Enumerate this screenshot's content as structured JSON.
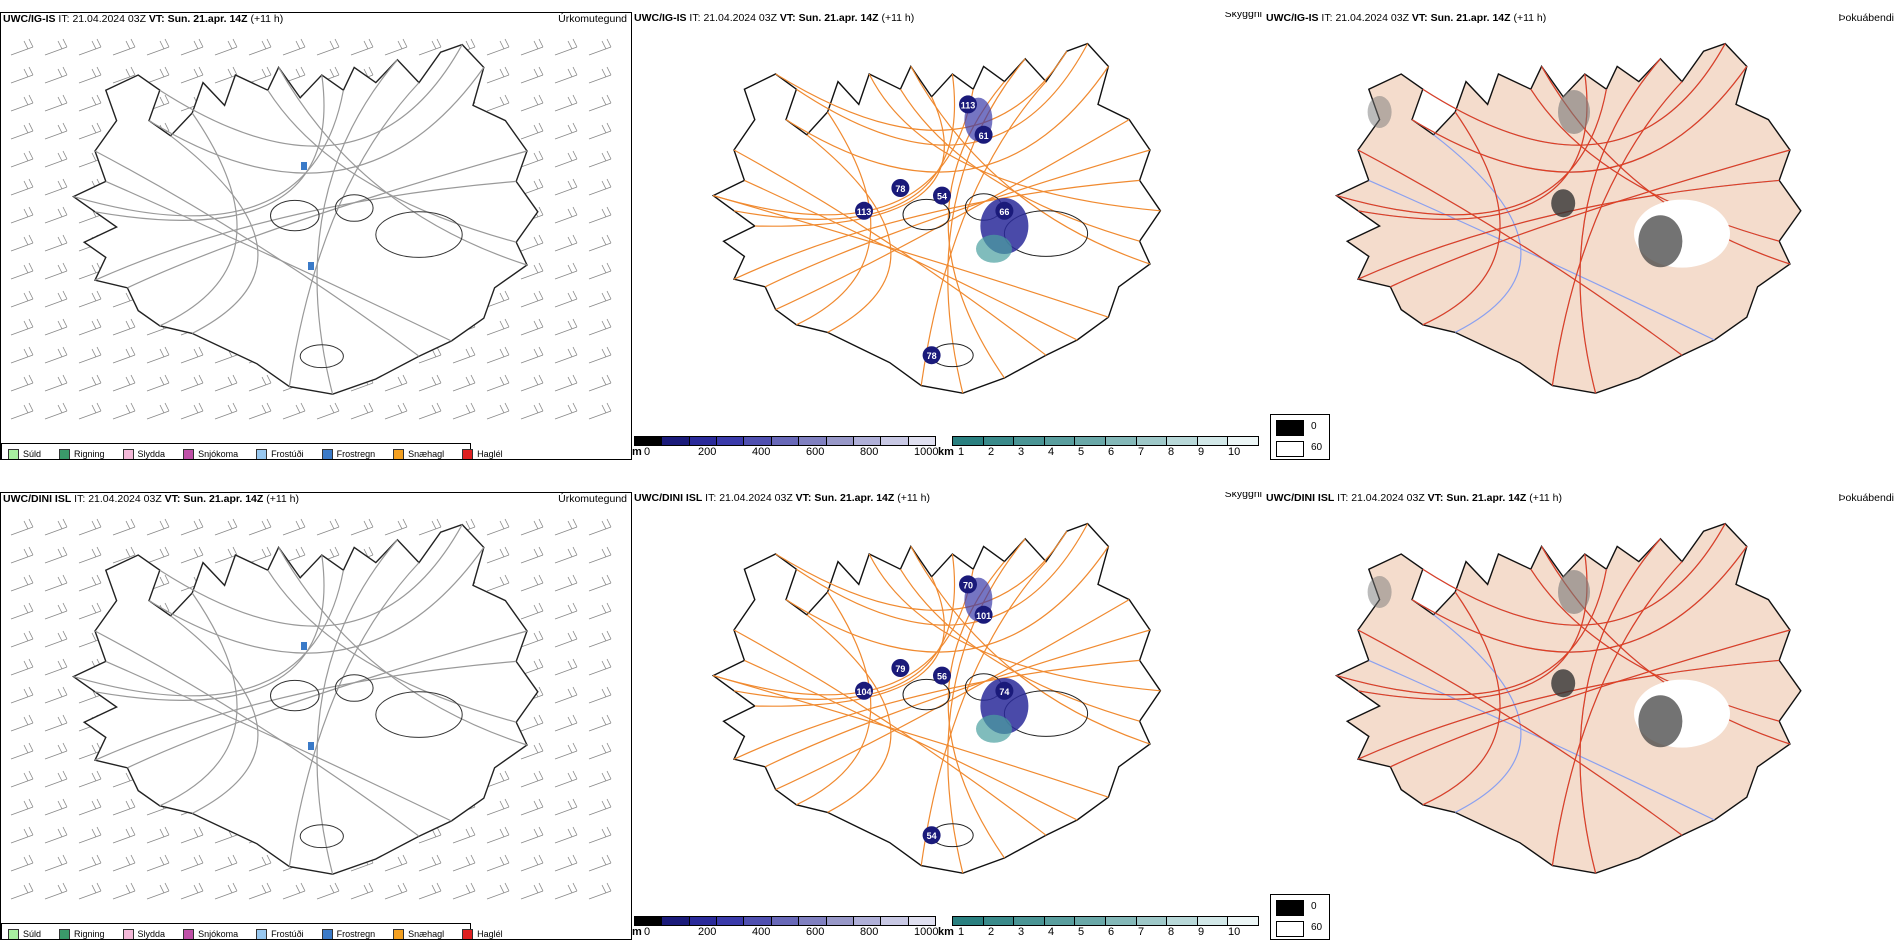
{
  "rows": [
    {
      "model": "UWC/IG-IS",
      "it_label": "IT:",
      "it_value": "21.04.2024 03Z",
      "vt_label": "VT:",
      "vt_value": "Sun. 21.apr. 14Z",
      "lead": "(+11 h)",
      "precip_title": "Úrkomutegund",
      "vis_title": "Skyggni",
      "fog_title": "Þokuábendi",
      "cloud_labels": [
        "78",
        "54",
        "113",
        "66",
        "113",
        "78",
        "61"
      ]
    },
    {
      "model": "UWC/DINI ISL",
      "it_label": "IT:",
      "it_value": "21.04.2024 03Z",
      "vt_label": "VT:",
      "vt_value": "Sun. 21.apr. 14Z",
      "lead": "(+11 h)",
      "precip_title": "Úrkomutegund",
      "vis_title": "Skyggni",
      "fog_title": "Þokuábendi",
      "cloud_labels": [
        "79",
        "56",
        "104",
        "74",
        "70",
        "54",
        "101"
      ]
    }
  ],
  "precip_legend": [
    {
      "label": "Súld",
      "color": "#a8f0a0"
    },
    {
      "label": "Rigning",
      "color": "#3a9a6a"
    },
    {
      "label": "Slydda",
      "color": "#f4b8d8"
    },
    {
      "label": "Snjókoma",
      "color": "#c050a8"
    },
    {
      "label": "Frostúði",
      "color": "#98c8f0"
    },
    {
      "label": "Frostregn",
      "color": "#3a7ac8"
    },
    {
      "label": "Snæhagl",
      "color": "#f4a020"
    },
    {
      "label": "Haglél",
      "color": "#e02020"
    }
  ],
  "cloud_bar": {
    "unit": "m",
    "ticks": [
      "0",
      "200",
      "400",
      "600",
      "800",
      "1000"
    ]
  },
  "vis_bar": {
    "unit": "km",
    "ticks": [
      "1",
      "2",
      "3",
      "4",
      "5",
      "6",
      "7",
      "8",
      "9",
      "10"
    ]
  },
  "fog_legend": [
    {
      "label": "0",
      "color": "#000000"
    },
    {
      "label": "60",
      "color": "#ffffff"
    }
  ],
  "colors": {
    "cloud_dark": "#1a1a7a",
    "roads_orange": "#f08a30",
    "land_tan": "#f4dccc",
    "roads_red": "#e04020",
    "rivers_blue": "#8aa0f0",
    "vis_teal": "#4aa0a0"
  }
}
